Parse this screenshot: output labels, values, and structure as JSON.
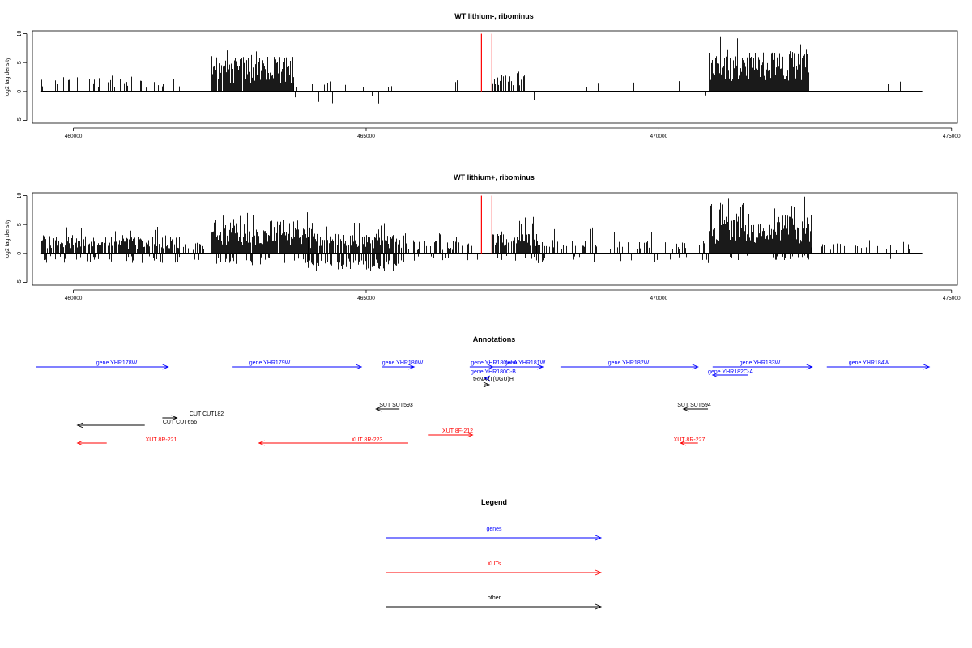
{
  "colors": {
    "gene": "#0000ff",
    "xut": "#ff0000",
    "other": "#000000",
    "bar": "#000000",
    "marker": "#ff0000",
    "baseline": "#000000"
  },
  "chart_data": [
    {
      "type": "bar",
      "title": "WT lithium-, ribominus",
      "ylabel": "log2 tag density",
      "xlim": [
        459300,
        475100
      ],
      "ylim": [
        -5.5,
        10.5
      ],
      "xticks": [
        460000,
        465000,
        470000,
        475000
      ],
      "yticks": [
        -5,
        0,
        5,
        10
      ],
      "grid": false,
      "marker_lines": [
        466970,
        467150
      ],
      "marker_height": 10,
      "clusters": [
        {
          "start": 459450,
          "end": 461850,
          "density": 0.18,
          "pos_mean": 1.8,
          "pos_max": 3.2,
          "neg_prob": 0.05,
          "neg_mean": 1.2,
          "neg_max": 2
        },
        {
          "start": 462350,
          "end": 463750,
          "density": 0.95,
          "pos_mean": 4.2,
          "pos_max": 7.2,
          "neg_prob": 0.0,
          "neg_mean": 0,
          "neg_max": 0
        },
        {
          "start": 463750,
          "end": 465500,
          "density": 0.08,
          "pos_mean": 1.3,
          "pos_max": 2.5,
          "neg_prob": 0.4,
          "neg_mean": 1.5,
          "neg_max": 2.6
        },
        {
          "start": 465500,
          "end": 466900,
          "density": 0.03,
          "pos_mean": 1.5,
          "pos_max": 2.5,
          "neg_prob": 0.0,
          "neg_mean": 0,
          "neg_max": 0
        },
        {
          "start": 467150,
          "end": 467750,
          "density": 0.55,
          "pos_mean": 2.5,
          "pos_max": 5.5,
          "neg_prob": 0.0,
          "neg_mean": 0,
          "neg_max": 0
        },
        {
          "start": 467750,
          "end": 470850,
          "density": 0.05,
          "pos_mean": 1.6,
          "pos_max": 3,
          "neg_prob": 0.3,
          "neg_mean": 1.4,
          "neg_max": 2.5
        },
        {
          "start": 470850,
          "end": 472550,
          "density": 1.0,
          "pos_mean": 5.0,
          "pos_max": 9.5,
          "neg_prob": 0.0,
          "neg_mean": 0,
          "neg_max": 0
        },
        {
          "start": 472550,
          "end": 474500,
          "density": 0.02,
          "pos_mean": 1.4,
          "pos_max": 2.4,
          "neg_prob": 0.0,
          "neg_mean": 0,
          "neg_max": 0
        }
      ]
    },
    {
      "type": "bar",
      "title": "WT lithium+, ribominus",
      "ylabel": "log2 tag density",
      "xlim": [
        459300,
        475100
      ],
      "ylim": [
        -5.5,
        10.5
      ],
      "xticks": [
        460000,
        465000,
        470000,
        475000
      ],
      "yticks": [
        -5,
        0,
        5,
        10
      ],
      "grid": false,
      "marker_lines": [
        466970,
        467150
      ],
      "marker_height": 10,
      "clusters": [
        {
          "start": 459450,
          "end": 461800,
          "density": 0.75,
          "pos_mean": 2.2,
          "pos_max": 5.0,
          "neg_prob": 0.35,
          "neg_mean": 1.2,
          "neg_max": 2.2
        },
        {
          "start": 461800,
          "end": 462350,
          "density": 0.25,
          "pos_mean": 1.3,
          "pos_max": 2.2,
          "neg_prob": 0.3,
          "neg_mean": 1.0,
          "neg_max": 2.0
        },
        {
          "start": 462350,
          "end": 464000,
          "density": 0.97,
          "pos_mean": 4.0,
          "pos_max": 7.2,
          "neg_prob": 0.25,
          "neg_mean": 1.5,
          "neg_max": 2.8
        },
        {
          "start": 464000,
          "end": 465600,
          "density": 0.85,
          "pos_mean": 2.5,
          "pos_max": 5.5,
          "neg_prob": 0.7,
          "neg_mean": 2.2,
          "neg_max": 5.0
        },
        {
          "start": 465600,
          "end": 466900,
          "density": 0.35,
          "pos_mean": 1.6,
          "pos_max": 3.5,
          "neg_prob": 0.25,
          "neg_mean": 1.1,
          "neg_max": 2.0
        },
        {
          "start": 467150,
          "end": 467900,
          "density": 0.85,
          "pos_mean": 2.7,
          "pos_max": 6.5,
          "neg_prob": 0.2,
          "neg_mean": 0.9,
          "neg_max": 1.8
        },
        {
          "start": 467900,
          "end": 470850,
          "density": 0.3,
          "pos_mean": 1.6,
          "pos_max": 4.5,
          "neg_prob": 0.35,
          "neg_mean": 1.3,
          "neg_max": 2.6
        },
        {
          "start": 470850,
          "end": 472600,
          "density": 1.0,
          "pos_mean": 4.8,
          "pos_max": 10.0,
          "neg_prob": 0.15,
          "neg_mean": 0.9,
          "neg_max": 1.6
        },
        {
          "start": 472600,
          "end": 474500,
          "density": 0.25,
          "pos_mean": 1.4,
          "pos_max": 2.6,
          "neg_prob": 0.05,
          "neg_mean": 0.8,
          "neg_max": 1.2
        }
      ]
    }
  ],
  "annotations": {
    "title": "Annotations",
    "features": [
      {
        "label": "gene YHR178W",
        "type": "gene",
        "strand": "+",
        "start": 459300,
        "end": 461550
      },
      {
        "label": "gene YHR179W",
        "type": "gene",
        "strand": "+",
        "start": 462650,
        "end": 464850
      },
      {
        "label": "gene YHR180W",
        "type": "gene",
        "strand": "+",
        "start": 465200,
        "end": 465750
      },
      {
        "label": "gene YHR180W-A",
        "type": "gene",
        "strand": "+",
        "start": 466700,
        "end": 467100
      },
      {
        "label": "gene YHR181W",
        "type": "gene",
        "strand": "+",
        "start": 467000,
        "end": 467950
      },
      {
        "label": "gene YHR182W",
        "type": "gene",
        "strand": "+",
        "start": 468250,
        "end": 470600
      },
      {
        "label": "gene YHR183W",
        "type": "gene",
        "strand": "+",
        "start": 470850,
        "end": 472550
      },
      {
        "label": "gene YHR182C-A",
        "type": "gene",
        "strand": "-",
        "start": 470850,
        "end": 471450
      },
      {
        "label": "gene YHR184W",
        "type": "gene",
        "strand": "+",
        "start": 472800,
        "end": 474550
      },
      {
        "label": "gene YHR180C-B",
        "type": "gene",
        "strand": "-",
        "start": 466950,
        "end": 467030
      },
      {
        "label": "tRNA tT(UGU)H",
        "type": "other",
        "strand": "+",
        "start": 466950,
        "end": 467030
      },
      {
        "label": "SUT SUT593",
        "type": "other",
        "strand": "-",
        "start": 465100,
        "end": 465500
      },
      {
        "label": "SUT SUT594",
        "type": "other",
        "strand": "-",
        "start": 470350,
        "end": 470770
      },
      {
        "label": "CUT CUT182",
        "type": "other",
        "strand": "+",
        "start": 461450,
        "end": 461700
      },
      {
        "label": "CUT CUT656",
        "type": "other",
        "strand": "-",
        "start": 460000,
        "end": 461150
      },
      {
        "label": "XUT 8R-221",
        "type": "xut",
        "strand": "-",
        "start": 460000,
        "end": 460500
      },
      {
        "label": "XUT 8R-223",
        "type": "xut",
        "strand": "-",
        "start": 463100,
        "end": 465650
      },
      {
        "label": "XUT 8F-212",
        "type": "xut",
        "strand": "+",
        "start": 466000,
        "end": 466750
      },
      {
        "label": "XUT 8R-227",
        "type": "xut",
        "strand": "-",
        "start": 470300,
        "end": 470600
      }
    ]
  },
  "legend": {
    "title": "Legend",
    "items": [
      {
        "label": "genes",
        "color": "#0000ff"
      },
      {
        "label": "XUTs",
        "color": "#ff0000"
      },
      {
        "label": "other",
        "color": "#000000"
      }
    ]
  }
}
